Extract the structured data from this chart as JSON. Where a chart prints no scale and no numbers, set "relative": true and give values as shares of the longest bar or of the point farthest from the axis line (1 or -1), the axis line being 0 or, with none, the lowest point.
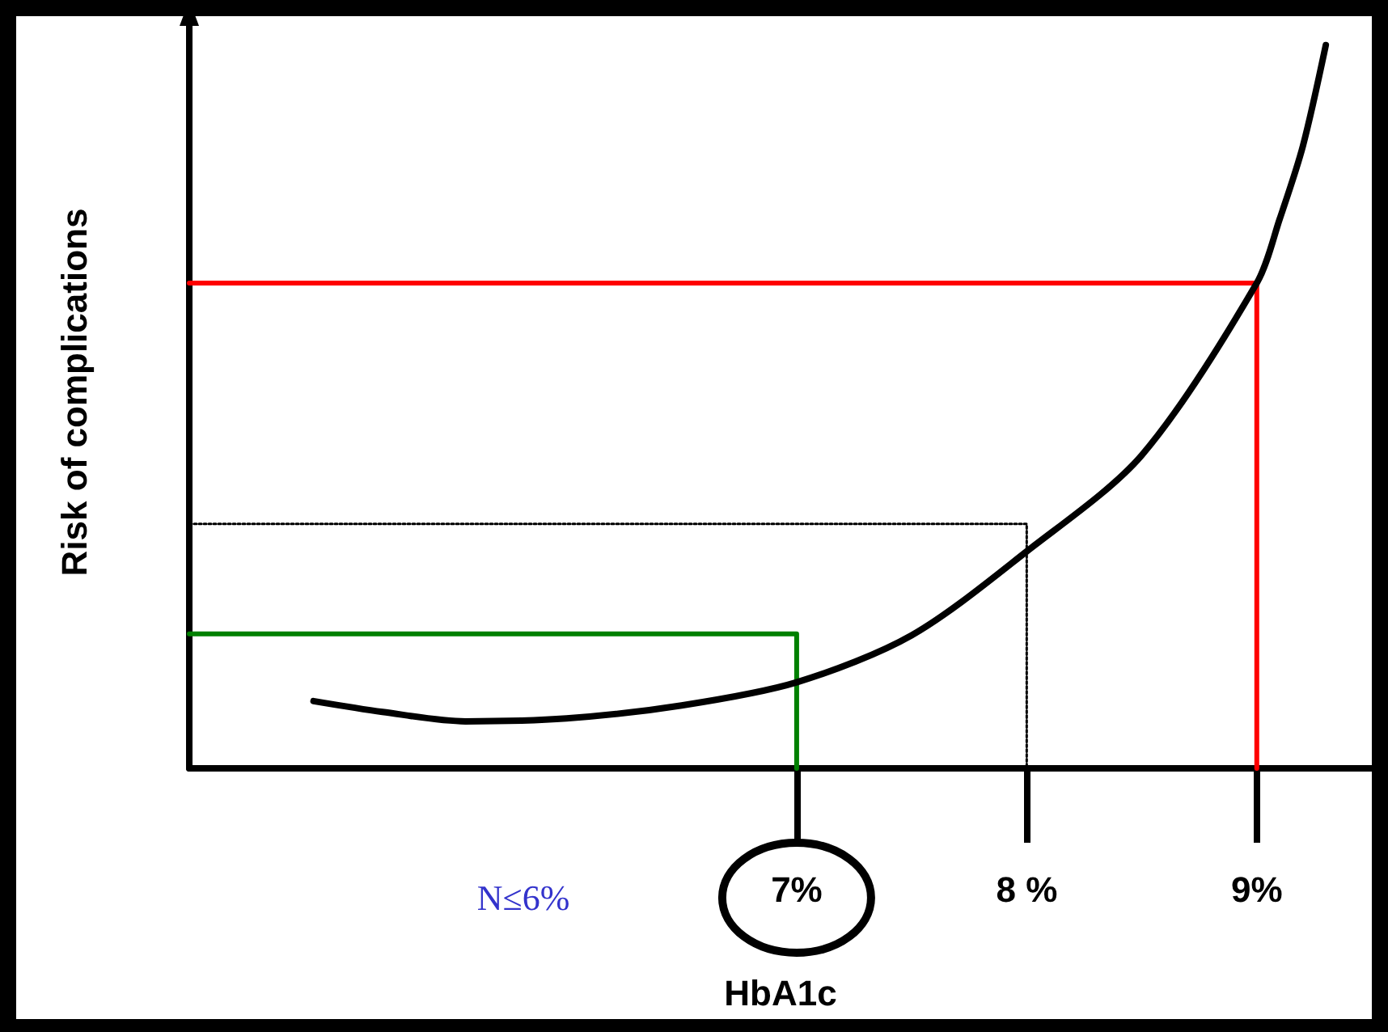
{
  "chart_data": {
    "type": "line",
    "relative": true,
    "ylabel": "Risk of complications",
    "xlabel": "HbA1c",
    "xlim": [
      4.36,
      9.5
    ],
    "xticks": [
      {
        "value": 7,
        "label": "7%"
      },
      {
        "value": 8,
        "label": "8 %"
      },
      {
        "value": 9,
        "label": "9%"
      }
    ],
    "marker": "none",
    "annotations": [
      "N≤6%"
    ],
    "series": [
      {
        "color": "#000000",
        "line_style": "solid",
        "x": [
          4.9,
          5.2,
          5.56,
          6.0,
          6.5,
          7.0,
          7.5,
          8.0,
          8.5,
          9.0,
          9.1,
          9.2,
          9.3
        ],
        "values": [
          0.093,
          0.078,
          0.065,
          0.069,
          0.087,
          0.119,
          0.184,
          0.3,
          0.433,
          0.671,
          0.76,
          0.86,
          1.0
        ]
      },
      {
        "color": "#ff0000",
        "line_style": "solid",
        "x": [
          4.36,
          9,
          9
        ],
        "values": [
          0.671,
          0.671,
          0
        ]
      },
      {
        "color": "#000000",
        "line_style": "dotted",
        "x": [
          4.36,
          8,
          8
        ],
        "values": [
          0.338,
          0.338,
          0
        ]
      },
      {
        "color": "#008000",
        "line_style": "solid",
        "x": [
          4.36,
          7,
          7
        ],
        "values": [
          0.186,
          0.186,
          0
        ]
      }
    ]
  }
}
